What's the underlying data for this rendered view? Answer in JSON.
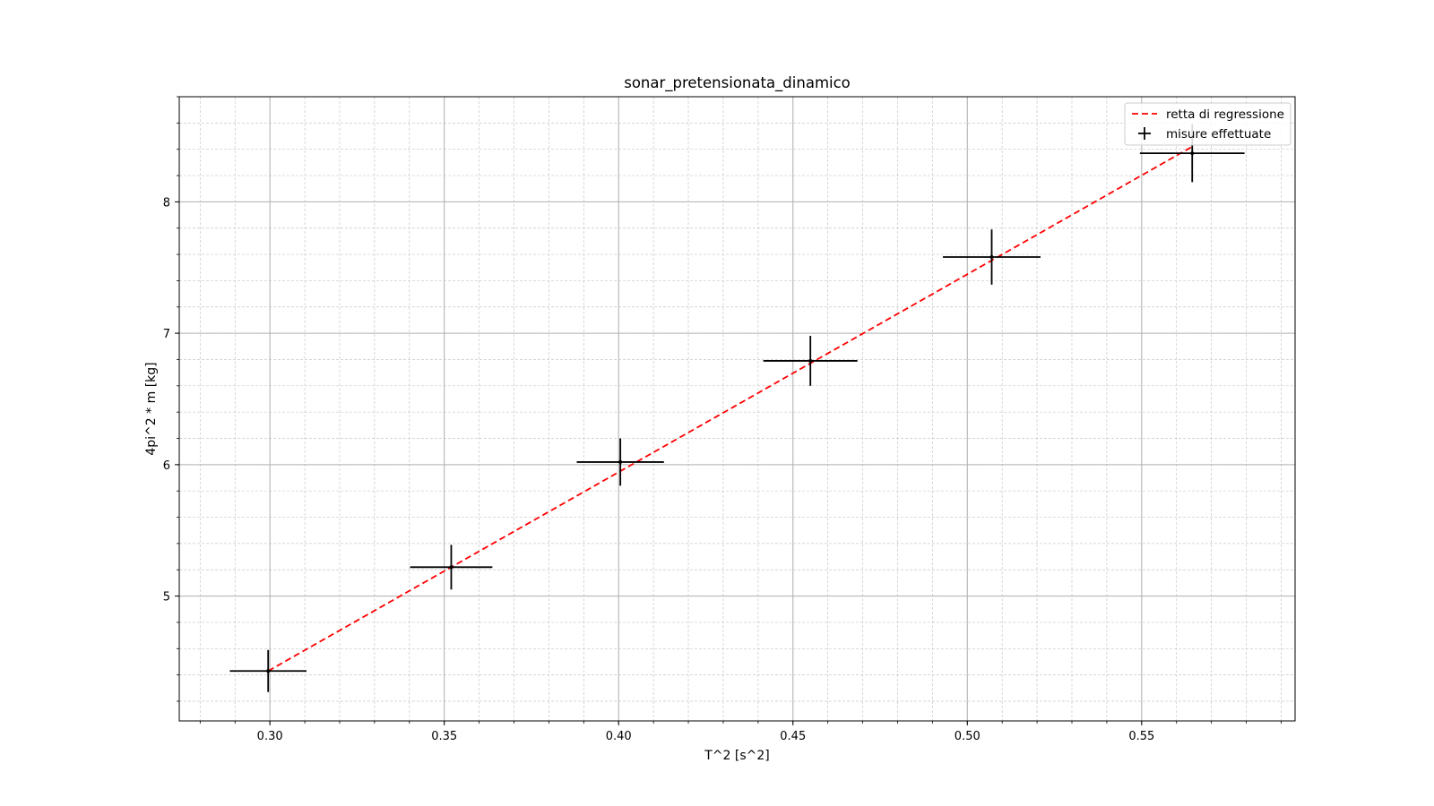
{
  "chart_data": {
    "type": "scatter",
    "title": "sonar_pretensionata_dinamico",
    "xlabel": "T^2 [s^2]",
    "ylabel": "4pi^2 * m [kg]",
    "xlim": [
      0.274,
      0.594
    ],
    "ylim": [
      4.05,
      8.8
    ],
    "x_ticks": [
      0.3,
      0.35,
      0.4,
      0.45,
      0.5,
      0.55
    ],
    "x_tick_labels": [
      "0.30",
      "0.35",
      "0.40",
      "0.45",
      "0.50",
      "0.55"
    ],
    "y_ticks": [
      5,
      6,
      7,
      8
    ],
    "y_tick_labels": [
      "5",
      "6",
      "7",
      "8"
    ],
    "grid": true,
    "minor_grid": true,
    "legend_position": "top-right",
    "series": [
      {
        "name": "retta di regressione",
        "kind": "line",
        "style": "dashed",
        "color": "#ff0000",
        "x": [
          0.2995,
          0.5645
        ],
        "y": [
          4.43,
          8.42
        ]
      },
      {
        "name": "misure effettuate",
        "kind": "errorbar",
        "color": "#000000",
        "points": [
          {
            "x": 0.2995,
            "y": 4.43,
            "xerr": 0.011,
            "yerr": 0.16
          },
          {
            "x": 0.352,
            "y": 5.22,
            "xerr": 0.0118,
            "yerr": 0.17
          },
          {
            "x": 0.4005,
            "y": 6.02,
            "xerr": 0.0125,
            "yerr": 0.18
          },
          {
            "x": 0.455,
            "y": 6.79,
            "xerr": 0.0135,
            "yerr": 0.19
          },
          {
            "x": 0.507,
            "y": 7.58,
            "xerr": 0.014,
            "yerr": 0.21
          },
          {
            "x": 0.5645,
            "y": 8.37,
            "xerr": 0.015,
            "yerr": 0.22
          }
        ]
      }
    ]
  }
}
